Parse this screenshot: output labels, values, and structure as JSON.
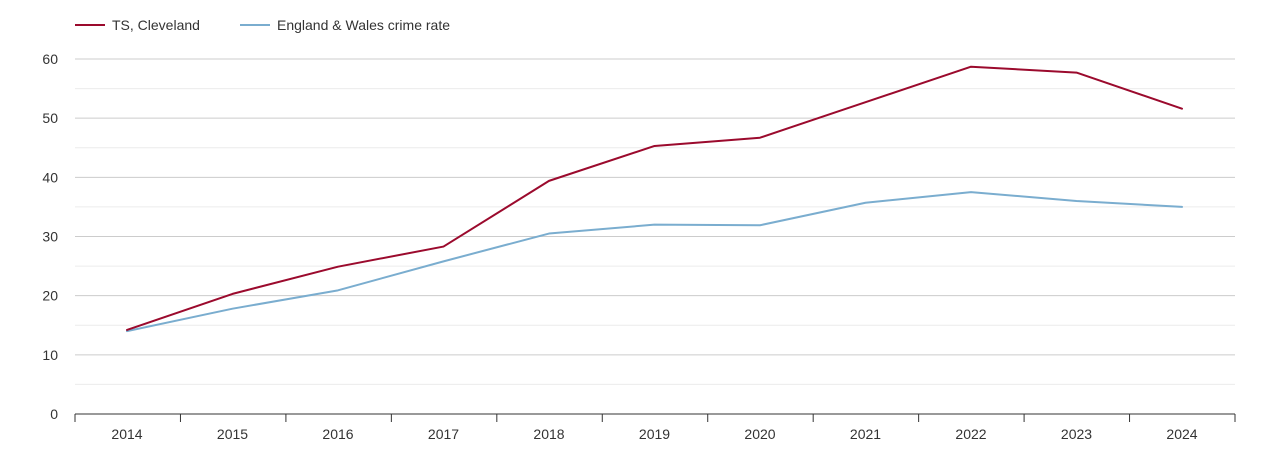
{
  "chart_data": {
    "type": "line",
    "title": "",
    "xlabel": "",
    "ylabel": "",
    "categories": [
      "2014",
      "2015",
      "2016",
      "2017",
      "2018",
      "2019",
      "2020",
      "2021",
      "2022",
      "2023",
      "2024"
    ],
    "ylim": [
      0,
      60
    ],
    "yticks": [
      "0",
      "10",
      "20",
      "30",
      "40",
      "50",
      "60"
    ],
    "grid": true,
    "legend_position": "top-left",
    "series": [
      {
        "name": "TS, Cleveland",
        "color": "#9b0a2d",
        "values": [
          14.2,
          20.3,
          24.9,
          28.3,
          39.4,
          45.3,
          46.7,
          52.7,
          58.7,
          57.7,
          51.6
        ]
      },
      {
        "name": "England & Wales crime rate",
        "color": "#7aadcf",
        "values": [
          14.0,
          17.8,
          20.9,
          25.8,
          30.5,
          32.0,
          31.9,
          35.7,
          37.5,
          36.0,
          35.0
        ]
      }
    ]
  }
}
